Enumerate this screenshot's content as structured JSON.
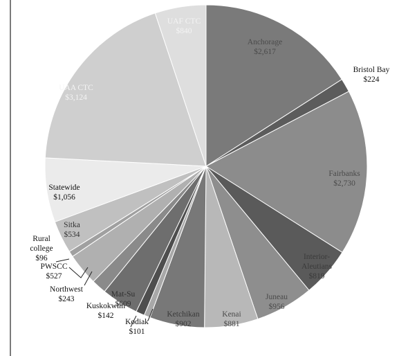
{
  "chart_data": {
    "type": "pie",
    "title": "",
    "slices": [
      {
        "label": "Anchorage",
        "value_label": "$2,617",
        "value": 2617,
        "color": "#7a7a7a"
      },
      {
        "label": "Bristol Bay",
        "value_label": "$224",
        "value": 224,
        "color": "#5c5c5c"
      },
      {
        "label": "Fairbanks",
        "value_label": "$2,730",
        "value": 2730,
        "color": "#8c8c8c"
      },
      {
        "label": "Interior-Aleutians",
        "value_label": "$819",
        "value": 819,
        "color": "#5a5a5a"
      },
      {
        "label": "Juneau",
        "value_label": "$956",
        "value": 956,
        "color": "#8e8e8e"
      },
      {
        "label": "Kenai",
        "value_label": "$881",
        "value": 881,
        "color": "#b8b8b8"
      },
      {
        "label": "Ketchikan",
        "value_label": "$902",
        "value": 902,
        "color": "#787878"
      },
      {
        "label": "Kodiak",
        "value_label": "$101",
        "value": 101,
        "color": "#a8a8a8"
      },
      {
        "label": "Kuskokwim",
        "value_label": "$142",
        "value": 142,
        "color": "#4e4e4e"
      },
      {
        "label": "Mat-Su",
        "value_label": "$609",
        "value": 609,
        "color": "#6e6e6e"
      },
      {
        "label": "Northwest",
        "value_label": "$243",
        "value": 243,
        "color": "#8a8a8a"
      },
      {
        "label": "PWSCC",
        "value_label": "$527",
        "value": 527,
        "color": "#b0b0b0"
      },
      {
        "label": "Rural college",
        "value_label": "$96",
        "value": 96,
        "color": "#a0a0a0"
      },
      {
        "label": "Sitka",
        "value_label": "$534",
        "value": 534,
        "color": "#c0c0c0"
      },
      {
        "label": "Statewide",
        "value_label": "$1,056",
        "value": 1056,
        "color": "#ebebeb"
      },
      {
        "label": "UAA CTC",
        "value_label": "$3,124",
        "value": 3124,
        "color": "#cfcfcf"
      },
      {
        "label": "UAF CTC",
        "value_label": "$840",
        "value": 840,
        "color": "#dedede"
      }
    ]
  }
}
